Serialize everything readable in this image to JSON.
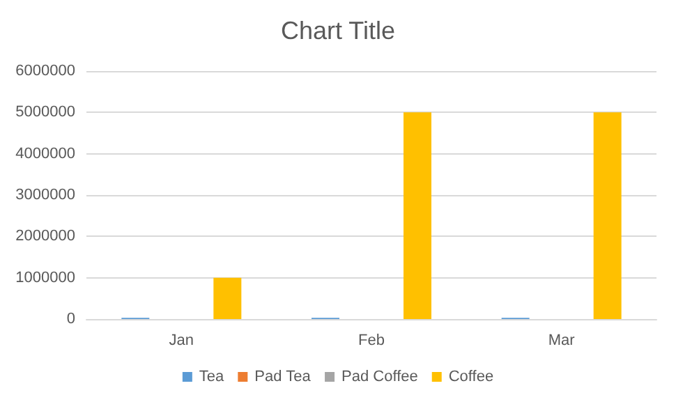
{
  "chart_data": {
    "type": "bar",
    "title": "Chart Title",
    "categories": [
      "Jan",
      "Feb",
      "Mar"
    ],
    "series": [
      {
        "name": "Tea",
        "color": "#5b9bd5",
        "values": [
          30000,
          30000,
          30000
        ]
      },
      {
        "name": "Pad Tea",
        "color": "#ed7d31",
        "values": [
          0,
          0,
          0
        ]
      },
      {
        "name": "Pad Coffee",
        "color": "#a5a5a5",
        "values": [
          0,
          0,
          0
        ]
      },
      {
        "name": "Coffee",
        "color": "#ffc000",
        "values": [
          1000000,
          5000000,
          5000000
        ]
      }
    ],
    "ylim": [
      0,
      6000000
    ],
    "yticks": [
      0,
      1000000,
      2000000,
      3000000,
      4000000,
      5000000,
      6000000
    ],
    "grid": "y",
    "legend": "bottom"
  }
}
